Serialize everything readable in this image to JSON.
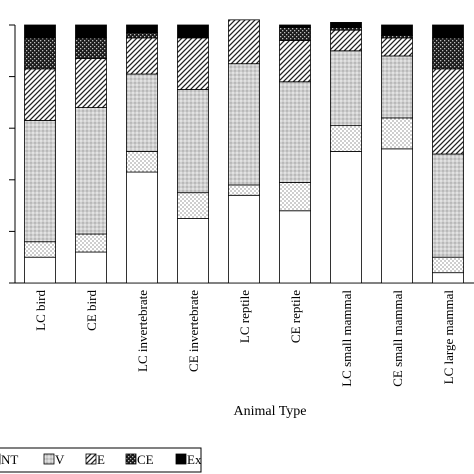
{
  "chart_data": {
    "type": "bar",
    "stacked": true,
    "xlabel": "Animal Type",
    "ylabel": "",
    "ylim": [
      0,
      100
    ],
    "grid": false,
    "legend_position": "bottom",
    "categories": [
      "LC bird",
      "CE bird",
      "LC invertebrate",
      "CE invertebrate",
      "LC reptile",
      "CE reptile",
      "LC small mammal",
      "CE small mammal",
      "LC large mammal"
    ],
    "series": [
      {
        "name": "",
        "key": "LC",
        "fill": "blank",
        "values": [
          10,
          12,
          43,
          25,
          34,
          28,
          51,
          52,
          4
        ]
      },
      {
        "name": "NT",
        "key": "NT",
        "fill": "dots",
        "values": [
          6,
          7,
          8,
          10,
          4,
          11,
          10,
          12,
          6
        ]
      },
      {
        "name": "V",
        "key": "V",
        "fill": "grey-dots",
        "values": [
          47,
          49,
          30,
          40,
          47,
          39,
          29,
          24,
          40
        ]
      },
      {
        "name": "E",
        "key": "E",
        "fill": "diagonal",
        "values": [
          20,
          19,
          14,
          20,
          17,
          16,
          8,
          7,
          33
        ]
      },
      {
        "name": "CE",
        "key": "CE",
        "fill": "dark-check",
        "values": [
          12,
          8,
          2,
          0,
          0,
          5,
          1,
          1,
          12
        ]
      },
      {
        "name": "Ex",
        "key": "Ex",
        "fill": "black",
        "values": [
          5,
          5,
          3,
          5,
          0,
          1,
          2,
          4,
          5
        ]
      }
    ]
  }
}
